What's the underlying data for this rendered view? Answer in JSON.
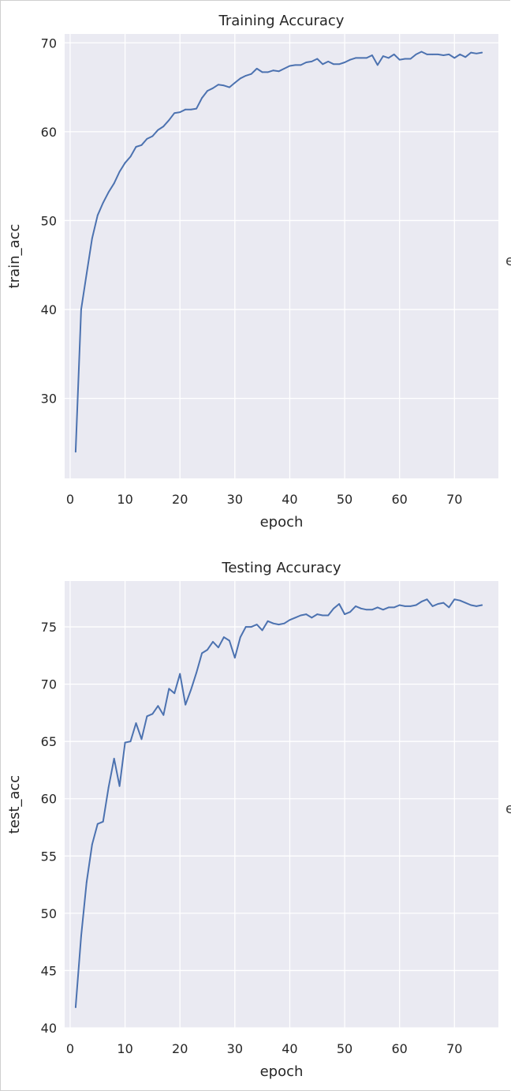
{
  "chart_data": [
    {
      "type": "line",
      "title": "Training Accuracy",
      "xlabel": "epoch",
      "ylabel": "train_acc",
      "xlim": [
        -1,
        78
      ],
      "ylim": [
        21,
        71
      ],
      "xticks": [
        0,
        10,
        20,
        30,
        40,
        50,
        60,
        70
      ],
      "yticks": [
        30,
        40,
        50,
        60,
        70
      ],
      "grid": true,
      "style": "seaborn darkgrid",
      "color": "#4c72b0",
      "series": [
        {
          "x": [
            1,
            2,
            3,
            4,
            5,
            6,
            7,
            8,
            9,
            10,
            11,
            12,
            13,
            14,
            15,
            16,
            17,
            18,
            19,
            20,
            21,
            22,
            23,
            24,
            25,
            26,
            27,
            28,
            29,
            30,
            31,
            32,
            33,
            34,
            35,
            36,
            37,
            38,
            39,
            40,
            41,
            42,
            43,
            44,
            45,
            46,
            47,
            48,
            49,
            50,
            51,
            52,
            53,
            54,
            55,
            56,
            57,
            58,
            59,
            60,
            61,
            62,
            63,
            64,
            65,
            66,
            67,
            68,
            69,
            70,
            71,
            72,
            73,
            74,
            75
          ],
          "values": [
            24.0,
            40.0,
            44.0,
            48.0,
            50.6,
            52.0,
            53.2,
            54.2,
            55.5,
            56.5,
            57.2,
            58.3,
            58.5,
            59.2,
            59.5,
            60.2,
            60.6,
            61.3,
            62.1,
            62.2,
            62.5,
            62.5,
            62.6,
            63.8,
            64.6,
            64.9,
            65.3,
            65.2,
            65.0,
            65.5,
            66.0,
            66.3,
            66.5,
            67.1,
            66.7,
            66.7,
            66.9,
            66.8,
            67.1,
            67.4,
            67.5,
            67.5,
            67.8,
            67.9,
            68.2,
            67.6,
            67.9,
            67.6,
            67.6,
            67.8,
            68.1,
            68.3,
            68.3,
            68.3,
            68.6,
            67.5,
            68.5,
            68.3,
            68.7,
            68.1,
            68.2,
            68.2,
            68.7,
            69.0,
            68.7,
            68.7,
            68.7,
            68.6,
            68.7,
            68.3,
            68.7,
            68.4,
            68.9,
            68.8,
            68.9
          ]
        }
      ]
    },
    {
      "type": "line",
      "title": "Testing Accuracy",
      "xlabel": "epoch",
      "ylabel": "test_acc",
      "xlim": [
        -1,
        78
      ],
      "ylim": [
        40,
        79
      ],
      "xticks": [
        0,
        10,
        20,
        30,
        40,
        50,
        60,
        70
      ],
      "yticks": [
        40,
        45,
        50,
        55,
        60,
        65,
        70,
        75
      ],
      "grid": true,
      "style": "seaborn darkgrid",
      "color": "#4c72b0",
      "series": [
        {
          "x": [
            1,
            2,
            3,
            4,
            5,
            6,
            7,
            8,
            9,
            10,
            11,
            12,
            13,
            14,
            15,
            16,
            17,
            18,
            19,
            20,
            21,
            22,
            23,
            24,
            25,
            26,
            27,
            28,
            29,
            30,
            31,
            32,
            33,
            34,
            35,
            36,
            37,
            38,
            39,
            40,
            41,
            42,
            43,
            44,
            45,
            46,
            47,
            48,
            49,
            50,
            51,
            52,
            53,
            54,
            55,
            56,
            57,
            58,
            59,
            60,
            61,
            62,
            63,
            64,
            65,
            66,
            67,
            68,
            69,
            70,
            71,
            72,
            73,
            74,
            75
          ],
          "values": [
            41.8,
            48.0,
            52.7,
            56.0,
            57.8,
            58.0,
            61.0,
            63.5,
            61.1,
            64.9,
            65.0,
            66.6,
            65.2,
            67.2,
            67.4,
            68.1,
            67.3,
            69.6,
            69.2,
            70.9,
            68.2,
            69.5,
            71.0,
            72.7,
            73.0,
            73.7,
            73.2,
            74.1,
            73.8,
            72.3,
            74.1,
            75.0,
            75.0,
            75.2,
            74.7,
            75.5,
            75.3,
            75.2,
            75.3,
            75.6,
            75.8,
            76.0,
            76.1,
            75.8,
            76.1,
            76.0,
            76.0,
            76.6,
            77.0,
            76.1,
            76.3,
            76.8,
            76.6,
            76.5,
            76.5,
            76.7,
            76.5,
            76.7,
            76.7,
            76.9,
            76.8,
            76.8,
            76.9,
            77.2,
            77.4,
            76.8,
            77.0,
            77.1,
            76.7,
            77.4,
            77.3,
            77.1,
            76.9,
            76.8,
            76.9
          ]
        }
      ]
    }
  ],
  "clipped_text": "e"
}
